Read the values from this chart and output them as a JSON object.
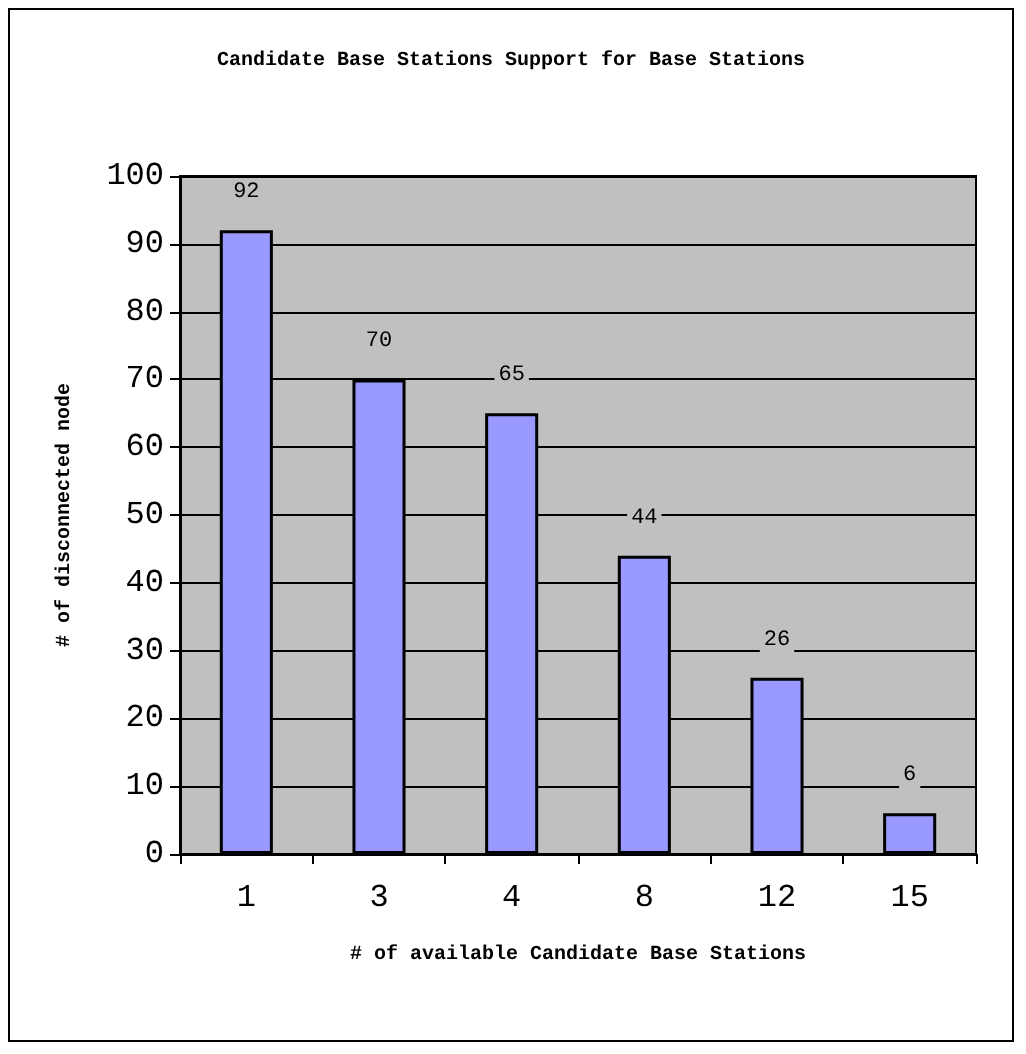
{
  "chart_data": {
    "type": "bar",
    "title": "Candidate Base Stations Support for Base Stations",
    "xlabel": "# of available Candidate Base Stations",
    "ylabel": "# of disconnected node",
    "categories": [
      "1",
      "3",
      "4",
      "8",
      "12",
      "15"
    ],
    "values": [
      92,
      70,
      65,
      44,
      26,
      6
    ],
    "color": "#9999ff",
    "ylim": [
      0,
      100
    ],
    "yticks": [
      0,
      10,
      20,
      30,
      40,
      50,
      60,
      70,
      80,
      90,
      100
    ],
    "grid": "y",
    "data_labels": true
  }
}
